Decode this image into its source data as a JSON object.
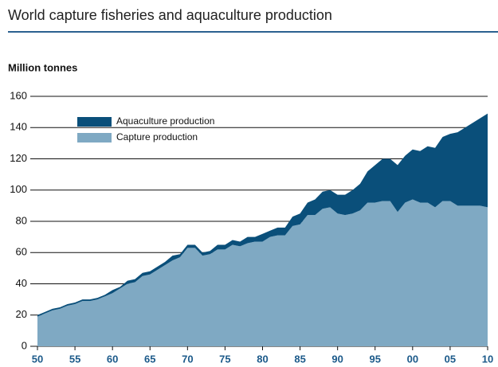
{
  "chart_data": {
    "type": "stacked_area",
    "title": "World capture fisheries and aquaculture production",
    "y_label": "Million tonnes",
    "categories": [
      "50",
      null,
      null,
      null,
      null,
      "55",
      null,
      null,
      null,
      null,
      "60",
      null,
      null,
      null,
      null,
      "65",
      null,
      null,
      null,
      null,
      "70",
      null,
      null,
      null,
      null,
      "75",
      null,
      null,
      null,
      null,
      "80",
      null,
      null,
      null,
      null,
      "85",
      null,
      null,
      null,
      null,
      "90",
      null,
      null,
      null,
      null,
      "95",
      null,
      null,
      null,
      null,
      "00",
      null,
      null,
      null,
      null,
      "05",
      null,
      null,
      null,
      null,
      "10"
    ],
    "series": [
      {
        "name": "Capture production",
        "color": "#7fa9c3",
        "values": [
          19,
          21,
          23,
          24,
          26,
          27,
          29,
          29,
          30,
          32,
          34,
          37,
          40,
          41,
          45,
          46,
          49,
          52,
          55,
          57,
          63,
          63,
          58,
          59,
          62,
          62,
          65,
          64,
          66,
          67,
          67,
          70,
          71,
          71,
          77,
          78,
          84,
          84,
          88,
          89,
          85,
          84,
          85,
          87,
          92,
          92,
          93,
          93,
          86,
          92,
          94,
          92,
          92,
          89,
          93,
          93,
          90,
          90,
          90,
          90,
          89
        ]
      },
      {
        "name": "Aquaculture production",
        "color": "#0a4f7a",
        "values": [
          1,
          1,
          1,
          1,
          1,
          1,
          1,
          1,
          1,
          1,
          2,
          1,
          2,
          2,
          2,
          2,
          2,
          2,
          3,
          2,
          2,
          2,
          2,
          2,
          3,
          3,
          3,
          3,
          4,
          3,
          5,
          4,
          5,
          5,
          6,
          7,
          8,
          10,
          11,
          11,
          12,
          13,
          15,
          17,
          20,
          24,
          27,
          27,
          30,
          30,
          32,
          33,
          36,
          38,
          41,
          43,
          47,
          50,
          53,
          56,
          60
        ]
      }
    ],
    "ylim": [
      0,
      160
    ],
    "yticks": [
      0,
      20,
      40,
      60,
      80,
      100,
      120,
      140,
      160
    ],
    "grid": true
  }
}
